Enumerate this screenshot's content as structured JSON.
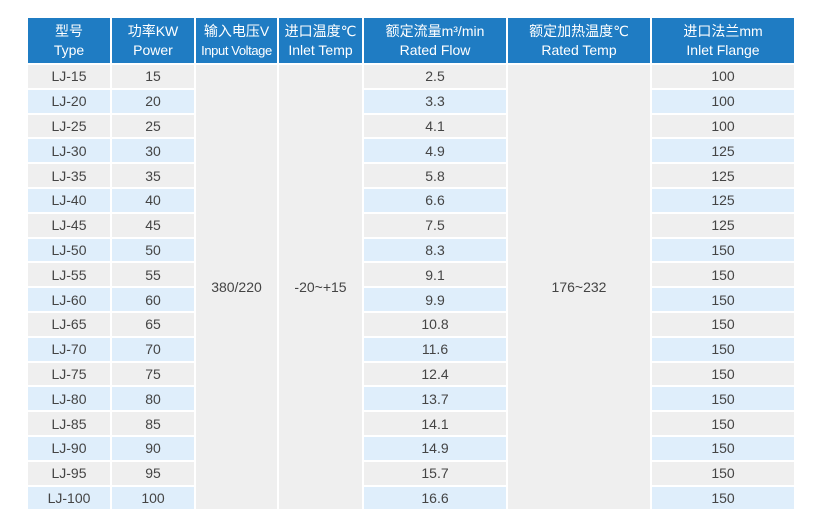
{
  "headers": [
    {
      "cn": "型号",
      "en": "Type"
    },
    {
      "cn": "功率KW",
      "en": "Power"
    },
    {
      "cn": "输入电压V",
      "en": "Input Voltage"
    },
    {
      "cn": "进口温度℃",
      "en": "Inlet Temp"
    },
    {
      "cn": "额定流量m³/min",
      "en": "Rated Flow"
    },
    {
      "cn": "额定加热温度℃",
      "en": "Rated Temp"
    },
    {
      "cn": "进口法兰mm",
      "en": "Inlet Flange"
    }
  ],
  "merged": {
    "input_voltage": "380/220",
    "inlet_temp": "-20~+15",
    "rated_temp": "176~232"
  },
  "rows": [
    {
      "type": "LJ-15",
      "power": "15",
      "flow": "2.5",
      "flange": "100"
    },
    {
      "type": "LJ-20",
      "power": "20",
      "flow": "3.3",
      "flange": "100"
    },
    {
      "type": "LJ-25",
      "power": "25",
      "flow": "4.1",
      "flange": "100"
    },
    {
      "type": "LJ-30",
      "power": "30",
      "flow": "4.9",
      "flange": "125"
    },
    {
      "type": "LJ-35",
      "power": "35",
      "flow": "5.8",
      "flange": "125"
    },
    {
      "type": "LJ-40",
      "power": "40",
      "flow": "6.6",
      "flange": "125"
    },
    {
      "type": "LJ-45",
      "power": "45",
      "flow": "7.5",
      "flange": "125"
    },
    {
      "type": "LJ-50",
      "power": "50",
      "flow": "8.3",
      "flange": "150"
    },
    {
      "type": "LJ-55",
      "power": "55",
      "flow": "9.1",
      "flange": "150"
    },
    {
      "type": "LJ-60",
      "power": "60",
      "flow": "9.9",
      "flange": "150"
    },
    {
      "type": "LJ-65",
      "power": "65",
      "flow": "10.8",
      "flange": "150"
    },
    {
      "type": "LJ-70",
      "power": "70",
      "flow": "11.6",
      "flange": "150"
    },
    {
      "type": "LJ-75",
      "power": "75",
      "flow": "12.4",
      "flange": "150"
    },
    {
      "type": "LJ-80",
      "power": "80",
      "flow": "13.7",
      "flange": "150"
    },
    {
      "type": "LJ-85",
      "power": "85",
      "flow": "14.1",
      "flange": "150"
    },
    {
      "type": "LJ-90",
      "power": "90",
      "flow": "14.9",
      "flange": "150"
    },
    {
      "type": "LJ-95",
      "power": "95",
      "flow": "15.7",
      "flange": "150"
    },
    {
      "type": "LJ-100",
      "power": "100",
      "flow": "16.6",
      "flange": "150"
    }
  ],
  "colors": {
    "header": "#1f7cc3",
    "row_gray": "#efefef",
    "row_blue": "#dfeefb"
  }
}
